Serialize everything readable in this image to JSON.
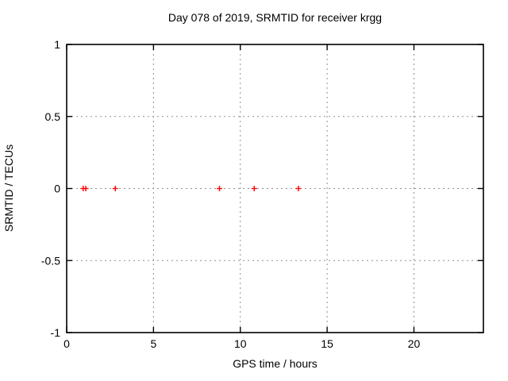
{
  "chart_data": {
    "type": "scatter",
    "title": "Day 078 of 2019, SRMTID for receiver krgg",
    "xlabel": "GPS time / hours",
    "ylabel": "SRMTID / TECUs",
    "xlim": [
      0,
      24
    ],
    "ylim": [
      -1,
      1
    ],
    "xticks": [
      0,
      5,
      10,
      15,
      20
    ],
    "xtick_labels": [
      "0",
      "5",
      "10",
      "15",
      "20"
    ],
    "yticks": [
      1,
      0.5,
      0,
      -0.5,
      -1
    ],
    "ytick_labels": [
      "1",
      "0.5",
      "0",
      "-0.5",
      "-1"
    ],
    "grid": true,
    "grid_style": "dotted",
    "grid_color": "#909090",
    "legend": "none",
    "marker": "plus",
    "marker_color": "#ff0000",
    "marker_size": 7,
    "points": [
      [
        0.95,
        0
      ],
      [
        1.1,
        0
      ],
      [
        2.8,
        0
      ],
      [
        8.8,
        0
      ],
      [
        10.8,
        0
      ],
      [
        13.35,
        0
      ]
    ]
  },
  "colors": {
    "background": "#ffffff",
    "frame": "#000000",
    "text": "#000000",
    "grid": "#909090",
    "points": "#ff0000"
  }
}
